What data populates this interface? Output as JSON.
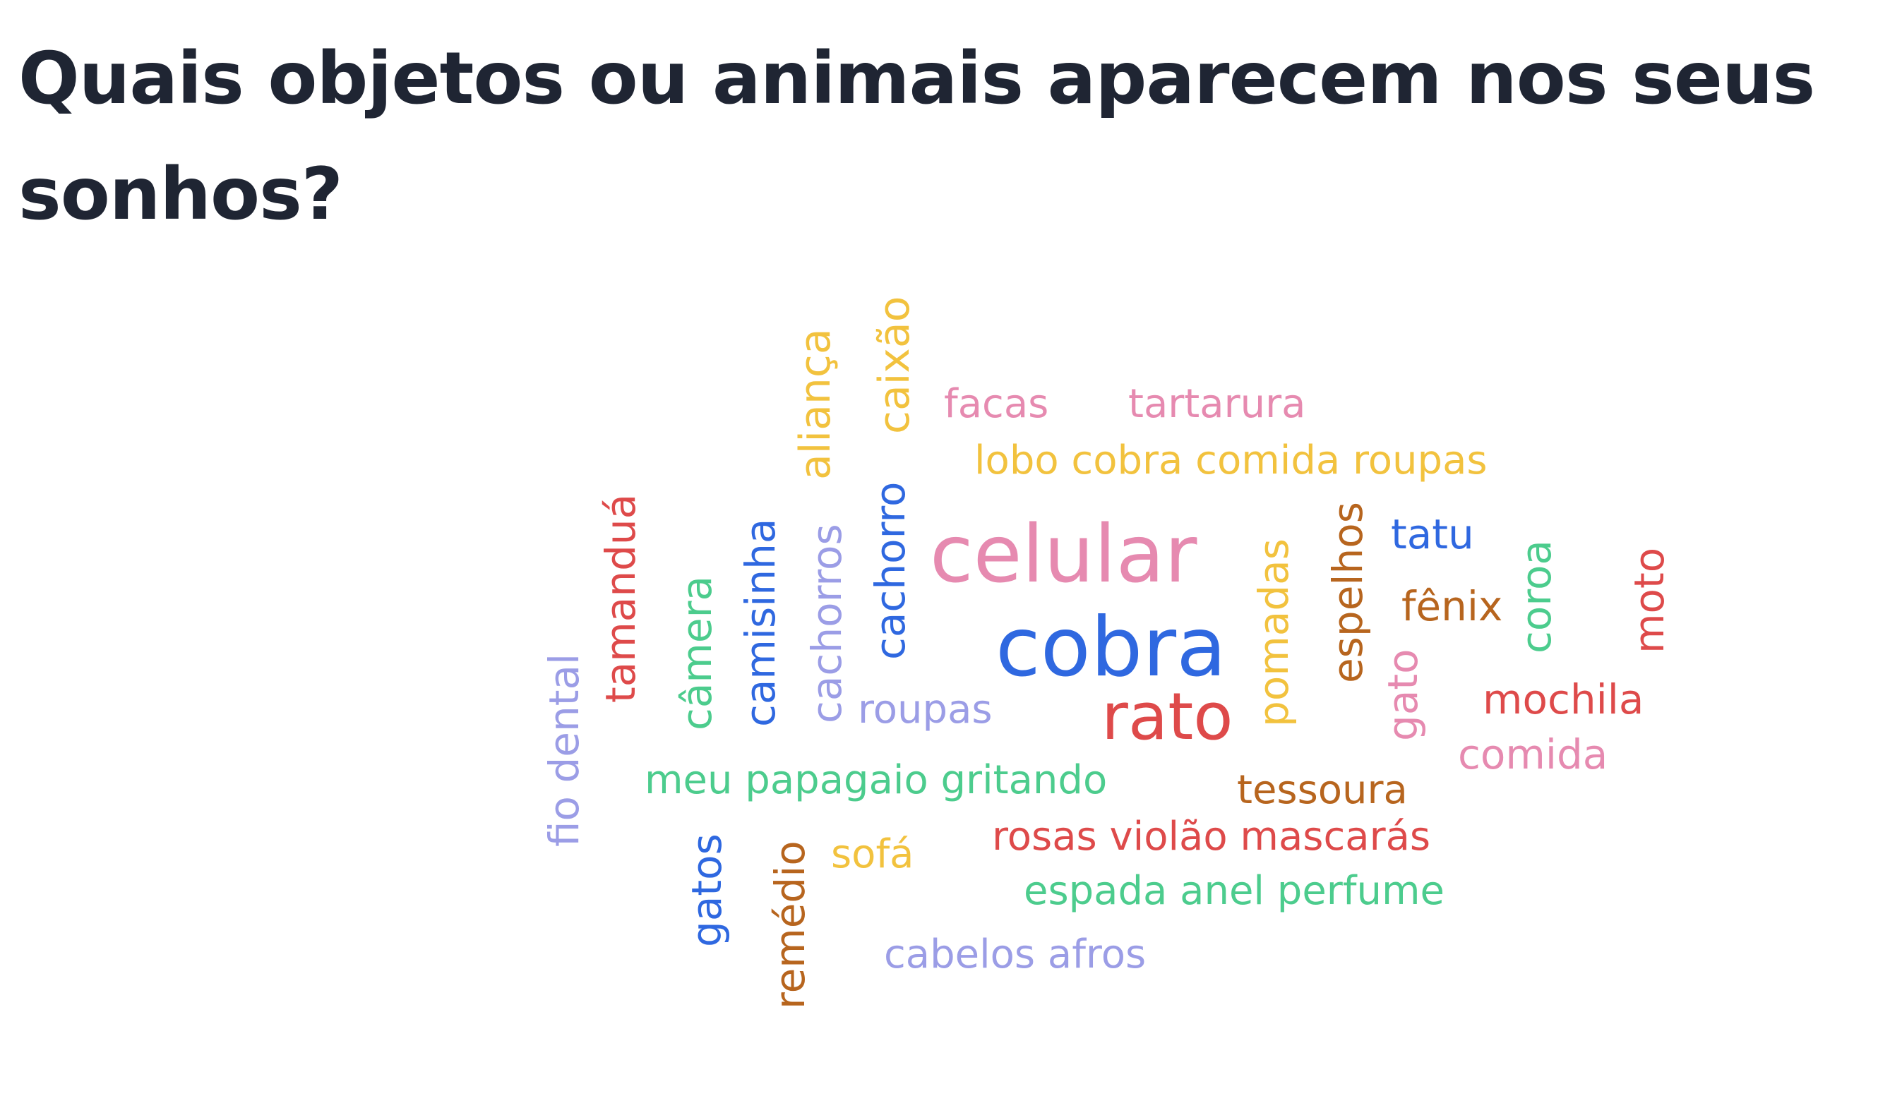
{
  "slide": {
    "title": "Quais objetos ou animais aparecem nos seus sonhos?"
  },
  "colors": {
    "title": "#1f2533",
    "pink": "#e68ab0",
    "blue": "#2f68e0",
    "red": "#de4a4a",
    "yellow": "#f2c23e",
    "green": "#4ccc8d",
    "lavender": "#9b9de6",
    "brown": "#b7651e"
  },
  "word_cloud": [
    {
      "text": "aliança",
      "color": "yellow"
    },
    {
      "text": "caixão",
      "color": "yellow"
    },
    {
      "text": "facas",
      "color": "pink"
    },
    {
      "text": "tartarura",
      "color": "pink"
    },
    {
      "text": "lobo cobra comida roupas",
      "color": "yellow"
    },
    {
      "text": "tamanduá",
      "color": "red"
    },
    {
      "text": "câmera",
      "color": "green"
    },
    {
      "text": "camisinha",
      "color": "blue"
    },
    {
      "text": "cachorros",
      "color": "lavender"
    },
    {
      "text": "cachorro",
      "color": "blue"
    },
    {
      "text": "celular",
      "color": "pink"
    },
    {
      "text": "cobra",
      "color": "blue"
    },
    {
      "text": "rato",
      "color": "red"
    },
    {
      "text": "pomadas",
      "color": "yellow"
    },
    {
      "text": "espelhos",
      "color": "brown"
    },
    {
      "text": "tatu",
      "color": "blue"
    },
    {
      "text": "fênix",
      "color": "brown"
    },
    {
      "text": "coroa",
      "color": "green"
    },
    {
      "text": "moto",
      "color": "red"
    },
    {
      "text": "gato",
      "color": "pink"
    },
    {
      "text": "mochila",
      "color": "red"
    },
    {
      "text": "comida",
      "color": "pink"
    },
    {
      "text": "roupas",
      "color": "lavender"
    },
    {
      "text": "fio dental",
      "color": "lavender"
    },
    {
      "text": "meu papagaio gritando",
      "color": "green"
    },
    {
      "text": "tessoura",
      "color": "brown"
    },
    {
      "text": "rosas violão mascarás",
      "color": "red"
    },
    {
      "text": "gatos",
      "color": "blue"
    },
    {
      "text": "remédio",
      "color": "brown"
    },
    {
      "text": "sofá",
      "color": "yellow"
    },
    {
      "text": "espada anel perfume",
      "color": "green"
    },
    {
      "text": "cabelos afros",
      "color": "lavender"
    }
  ]
}
